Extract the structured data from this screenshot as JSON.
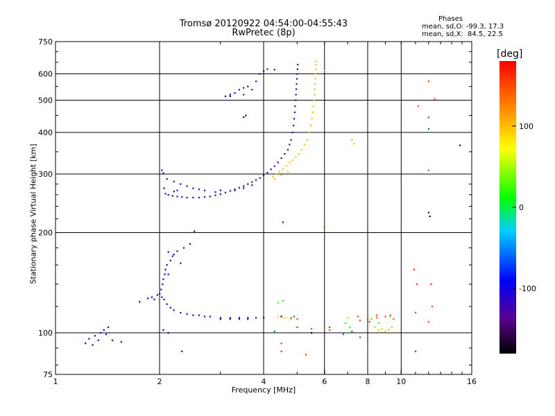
{
  "chart_data": {
    "type": "scatter",
    "title": "Tromsø 20120922 04:54:00-04:55:43",
    "subtitle": "RwPretec (8p)",
    "xlabel": "Frequency [MHz]",
    "ylabel": "Stationary phase Virtual Height [km]",
    "x_scale": "log",
    "y_scale": "log",
    "xlim": [
      1,
      16
    ],
    "ylim": [
      75,
      750
    ],
    "x_ticks": [
      1,
      2,
      4,
      6,
      8,
      10,
      16
    ],
    "x_tick_labels": [
      "1",
      "2",
      "4",
      "6",
      "8",
      "10",
      "16"
    ],
    "x_grid": [
      2,
      4,
      6,
      8,
      10
    ],
    "y_ticks": [
      75,
      100,
      200,
      300,
      400,
      500,
      600,
      750
    ],
    "y_tick_labels": [
      "75",
      "100",
      "200",
      "300",
      "400",
      "500",
      "600",
      "750"
    ],
    "y_grid": [
      100,
      200,
      300,
      400,
      500,
      600
    ],
    "colorbar": {
      "title": "[deg]",
      "range": [
        -180,
        180
      ],
      "ticks": [
        100,
        0,
        -100
      ],
      "tick_labels": [
        "100",
        "0",
        "-100"
      ]
    },
    "annotation": {
      "heading": "Phases",
      "line1": "mean, sd,O: -99.3, 17.3",
      "line2": "mean, sd,X:  84.5, 22.5"
    },
    "series": [
      {
        "phase": -100,
        "points": [
          [
            1.22,
            93
          ],
          [
            1.25,
            96
          ],
          [
            1.28,
            92
          ],
          [
            1.3,
            98
          ],
          [
            1.33,
            95
          ],
          [
            1.35,
            100
          ],
          [
            1.38,
            102
          ],
          [
            1.4,
            99
          ],
          [
            1.42,
            104
          ],
          [
            1.46,
            95
          ],
          [
            1.55,
            94
          ],
          [
            1.75,
            124
          ],
          [
            1.85,
            127
          ],
          [
            1.9,
            128
          ],
          [
            1.93,
            126
          ],
          [
            1.97,
            130
          ],
          [
            2.0,
            131
          ],
          [
            2.03,
            128
          ],
          [
            2.06,
            126
          ],
          [
            2.1,
            122
          ],
          [
            2.15,
            119
          ],
          [
            2.2,
            117
          ],
          [
            2.3,
            115
          ],
          [
            2.4,
            114
          ],
          [
            2.5,
            113
          ],
          [
            2.6,
            113
          ],
          [
            2.7,
            112
          ],
          [
            2.8,
            112
          ],
          [
            3.0,
            111
          ],
          [
            3.2,
            111
          ],
          [
            3.4,
            111
          ],
          [
            3.6,
            111
          ],
          [
            3.8,
            111
          ],
          [
            4.0,
            111
          ],
          [
            2.02,
            135
          ],
          [
            2.04,
            140
          ],
          [
            2.05,
            145
          ],
          [
            2.07,
            150
          ],
          [
            2.08,
            155
          ],
          [
            2.1,
            160
          ],
          [
            2.12,
            150
          ],
          [
            2.15,
            165
          ],
          [
            2.18,
            170
          ],
          [
            2.2,
            172
          ],
          [
            2.12,
            175
          ],
          [
            2.25,
            176
          ],
          [
            2.3,
            162
          ],
          [
            2.35,
            180
          ],
          [
            2.45,
            185
          ],
          [
            2.52,
            202
          ],
          [
            2.05,
            102
          ],
          [
            2.12,
            100
          ],
          [
            2.32,
            88
          ]
        ]
      },
      {
        "phase": -110,
        "points": [
          [
            2.03,
            308
          ],
          [
            2.05,
            302
          ],
          [
            2.06,
            272
          ],
          [
            2.08,
            262
          ],
          [
            2.12,
            260
          ],
          [
            2.18,
            258
          ],
          [
            2.25,
            257
          ],
          [
            2.32,
            256
          ],
          [
            2.4,
            255
          ],
          [
            2.5,
            255
          ],
          [
            2.6,
            255
          ],
          [
            2.7,
            256
          ],
          [
            2.8,
            257
          ],
          [
            2.9,
            259
          ],
          [
            3.0,
            261
          ],
          [
            3.1,
            264
          ],
          [
            3.2,
            267
          ],
          [
            3.3,
            270
          ],
          [
            3.4,
            273
          ],
          [
            3.5,
            276
          ],
          [
            3.6,
            280
          ],
          [
            3.7,
            284
          ],
          [
            3.8,
            288
          ],
          [
            3.9,
            292
          ],
          [
            4.0,
            297
          ],
          [
            4.1,
            303
          ],
          [
            4.2,
            310
          ],
          [
            4.3,
            317
          ],
          [
            4.4,
            325
          ],
          [
            4.5,
            335
          ],
          [
            4.6,
            345
          ],
          [
            4.7,
            355
          ],
          [
            4.75,
            368
          ],
          [
            4.8,
            380
          ],
          [
            4.85,
            400
          ],
          [
            4.88,
            420
          ],
          [
            4.9,
            440
          ],
          [
            4.92,
            460
          ],
          [
            4.93,
            480
          ],
          [
            4.95,
            500
          ],
          [
            4.96,
            520
          ],
          [
            4.97,
            540
          ],
          [
            4.98,
            560
          ],
          [
            4.99,
            580
          ],
          [
            5.0,
            600
          ],
          [
            5.01,
            620
          ],
          [
            5.02,
            640
          ],
          [
            2.1,
            290
          ],
          [
            2.2,
            285
          ],
          [
            2.3,
            280
          ],
          [
            2.4,
            276
          ],
          [
            2.5,
            272
          ],
          [
            2.6,
            270
          ],
          [
            2.7,
            268
          ],
          [
            3.1,
            514
          ],
          [
            3.2,
            520
          ],
          [
            3.3,
            526
          ],
          [
            3.4,
            538
          ],
          [
            3.5,
            545
          ],
          [
            3.6,
            550
          ],
          [
            3.8,
            570
          ],
          [
            3.9,
            600
          ],
          [
            4.0,
            612
          ],
          [
            4.1,
            620
          ],
          [
            4.3,
            618
          ],
          [
            3.5,
            445
          ],
          [
            3.55,
            450
          ],
          [
            2.9,
            265
          ],
          [
            3.0,
            268
          ],
          [
            2.25,
            268
          ],
          [
            2.2,
            266
          ],
          [
            4.55,
            215
          ]
        ]
      },
      {
        "phase": -135,
        "points": [
          [
            3.0,
            110
          ],
          [
            3.2,
            110
          ],
          [
            3.4,
            110
          ],
          [
            3.6,
            110
          ],
          [
            3.3,
            268
          ],
          [
            3.5,
            272
          ],
          [
            3.7,
            278
          ],
          [
            3.2,
            514
          ],
          [
            3.5,
            520
          ],
          [
            3.7,
            538
          ]
        ]
      },
      {
        "phase": 100,
        "points": [
          [
            4.25,
            295
          ],
          [
            4.35,
            300
          ],
          [
            4.45,
            305
          ],
          [
            4.55,
            310
          ],
          [
            4.65,
            318
          ],
          [
            4.75,
            325
          ],
          [
            4.85,
            330
          ],
          [
            4.95,
            338
          ],
          [
            5.05,
            345
          ],
          [
            5.15,
            355
          ],
          [
            5.25,
            368
          ],
          [
            5.35,
            380
          ],
          [
            5.42,
            400
          ],
          [
            5.48,
            420
          ],
          [
            5.52,
            440
          ],
          [
            5.55,
            460
          ],
          [
            5.57,
            480
          ],
          [
            5.6,
            500
          ],
          [
            5.61,
            520
          ],
          [
            5.62,
            540
          ],
          [
            5.63,
            560
          ],
          [
            5.64,
            580
          ],
          [
            5.65,
            600
          ],
          [
            5.66,
            620
          ],
          [
            5.67,
            640
          ],
          [
            5.68,
            655
          ],
          [
            4.3,
            290
          ],
          [
            4.5,
            298
          ],
          [
            4.7,
            305
          ],
          [
            7.2,
            380
          ],
          [
            7.3,
            370
          ],
          [
            6.0,
            615
          ],
          [
            8.4,
            104
          ],
          [
            8.6,
            102
          ],
          [
            8.8,
            103
          ],
          [
            9.0,
            101
          ],
          [
            9.2,
            102
          ],
          [
            9.4,
            104
          ],
          [
            4.4,
            112
          ],
          [
            4.6,
            111
          ],
          [
            4.8,
            110
          ],
          [
            7.0,
            111
          ]
        ]
      },
      {
        "phase": 150,
        "points": [
          [
            4.8,
            111
          ],
          [
            5.0,
            110
          ],
          [
            5.5,
            103
          ],
          [
            6.2,
            102
          ],
          [
            6.8,
            100
          ],
          [
            7.5,
            112
          ],
          [
            8.0,
            110
          ],
          [
            8.5,
            111
          ],
          [
            9.0,
            112
          ],
          [
            9.5,
            110
          ],
          [
            11.0,
            115
          ],
          [
            12.0,
            108
          ],
          [
            12.3,
            120
          ],
          [
            12.0,
            570
          ],
          [
            12.5,
            505
          ],
          [
            11.2,
            480
          ],
          [
            12.0,
            308
          ],
          [
            4.5,
            93
          ],
          [
            6.0,
            208
          ],
          [
            8.5,
            113
          ],
          [
            9.3,
            113
          ]
        ]
      },
      {
        "phase": 20,
        "points": [
          [
            8.2,
            110
          ],
          [
            8.6,
            107
          ],
          [
            9.3,
            112
          ],
          [
            4.4,
            123
          ],
          [
            4.55,
            125
          ],
          [
            6.9,
            107
          ],
          [
            7.1,
            104
          ]
        ]
      },
      {
        "phase": -60,
        "points": [
          [
            7.2,
            101
          ],
          [
            7.6,
            97
          ],
          [
            11.0,
            88
          ],
          [
            12.0,
            444
          ],
          [
            12.0,
            410
          ],
          [
            4.3,
            101
          ],
          [
            4.9,
            112
          ],
          [
            6.8,
            99
          ]
        ]
      },
      {
        "phase": 160,
        "points": [
          [
            4.5,
            88
          ],
          [
            5.3,
            86
          ],
          [
            5.0,
            104
          ],
          [
            6.2,
            104
          ],
          [
            10.9,
            155
          ],
          [
            11.1,
            140
          ],
          [
            7.6,
            109
          ],
          [
            8.1,
            108
          ],
          [
            12.2,
            140
          ]
        ]
      },
      {
        "phase": -170,
        "points": [
          [
            14.8,
            366
          ],
          [
            12.0,
            230
          ],
          [
            12.1,
            224
          ],
          [
            5.5,
            100
          ],
          [
            4.5,
            112
          ]
        ]
      }
    ]
  }
}
